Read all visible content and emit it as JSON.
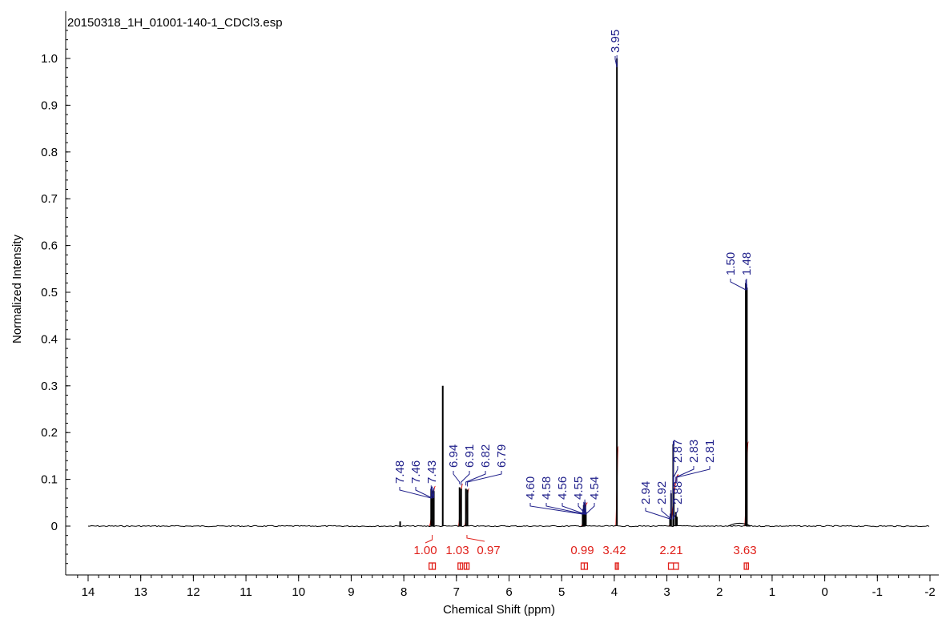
{
  "chart_data": {
    "type": "line",
    "title": "20150318_1H_01001-140-1_CDCl3.esp",
    "xlabel": "Chemical Shift (ppm)",
    "ylabel": "Normalized Intensity",
    "xlim": [
      14,
      -2
    ],
    "ylim": [
      -0.09,
      1.07
    ],
    "x_ticks": [
      "14",
      "13",
      "12",
      "11",
      "10",
      "9",
      "8",
      "7",
      "6",
      "5",
      "4",
      "3",
      "2",
      "1",
      "0",
      "-1",
      "-2"
    ],
    "y_ticks": [
      "0",
      "0.1",
      "0.2",
      "0.3",
      "0.4",
      "0.5",
      "0.6",
      "0.7",
      "0.8",
      "0.9",
      "1.0"
    ],
    "colors": {
      "spectrum": "#000000",
      "peak_label": "#1f1f8a",
      "integral": "#e0201a"
    },
    "series": [
      {
        "peaks": [
          {
            "x": 8.07,
            "y": 0.01
          },
          {
            "x": 7.48,
            "y": 0.08
          },
          {
            "x": 7.46,
            "y": 0.078
          },
          {
            "x": 7.43,
            "y": 0.075
          },
          {
            "x": 7.26,
            "y": 0.3
          },
          {
            "x": 6.94,
            "y": 0.083
          },
          {
            "x": 6.91,
            "y": 0.08
          },
          {
            "x": 6.82,
            "y": 0.08
          },
          {
            "x": 6.79,
            "y": 0.078
          },
          {
            "x": 4.6,
            "y": 0.03
          },
          {
            "x": 4.58,
            "y": 0.045
          },
          {
            "x": 4.56,
            "y": 0.05
          },
          {
            "x": 4.55,
            "y": 0.045
          },
          {
            "x": 4.54,
            "y": 0.03
          },
          {
            "x": 3.95,
            "y": 1.0
          },
          {
            "x": 2.94,
            "y": 0.02
          },
          {
            "x": 2.92,
            "y": 0.07
          },
          {
            "x": 2.88,
            "y": 0.175
          },
          {
            "x": 2.87,
            "y": 0.08
          },
          {
            "x": 2.83,
            "y": 0.03
          },
          {
            "x": 2.81,
            "y": 0.02
          },
          {
            "x": 1.5,
            "y": 0.52
          },
          {
            "x": 1.48,
            "y": 0.51
          }
        ],
        "baseline_bumps": [
          {
            "x": 1.62,
            "y": 0.007
          }
        ]
      }
    ],
    "peak_labels": [
      {
        "ppm": 7.48,
        "text": "7.48"
      },
      {
        "ppm": 7.46,
        "text": "7.46"
      },
      {
        "ppm": 7.43,
        "text": "7.43"
      },
      {
        "ppm": 6.94,
        "text": "6.94"
      },
      {
        "ppm": 6.91,
        "text": "6.91"
      },
      {
        "ppm": 6.82,
        "text": "6.82"
      },
      {
        "ppm": 6.79,
        "text": "6.79"
      },
      {
        "ppm": 4.6,
        "text": "4.60"
      },
      {
        "ppm": 4.58,
        "text": "4.58"
      },
      {
        "ppm": 4.56,
        "text": "4.56"
      },
      {
        "ppm": 4.55,
        "text": "4.55"
      },
      {
        "ppm": 4.54,
        "text": "4.54"
      },
      {
        "ppm": 3.95,
        "text": "3.95"
      },
      {
        "ppm": 2.94,
        "text": "2.94"
      },
      {
        "ppm": 2.92,
        "text": "2.92"
      },
      {
        "ppm": 2.88,
        "text": "2.88"
      },
      {
        "ppm": 2.87,
        "text": "2.87"
      },
      {
        "ppm": 2.83,
        "text": "2.83"
      },
      {
        "ppm": 2.81,
        "text": "2.81"
      },
      {
        "ppm": 1.5,
        "text": "1.50"
      },
      {
        "ppm": 1.48,
        "text": "1.48"
      }
    ],
    "integrals": [
      {
        "from": 7.52,
        "to": 7.4,
        "value": "1.00"
      },
      {
        "from": 6.97,
        "to": 6.88,
        "value": "1.03"
      },
      {
        "from": 6.85,
        "to": 6.76,
        "value": "0.97"
      },
      {
        "from": 4.63,
        "to": 4.51,
        "value": "0.99"
      },
      {
        "from": 3.98,
        "to": 3.92,
        "value": "3.42"
      },
      {
        "from": 2.97,
        "to": 2.78,
        "value": "2.21"
      },
      {
        "from": 1.53,
        "to": 1.45,
        "value": "3.63"
      }
    ]
  }
}
